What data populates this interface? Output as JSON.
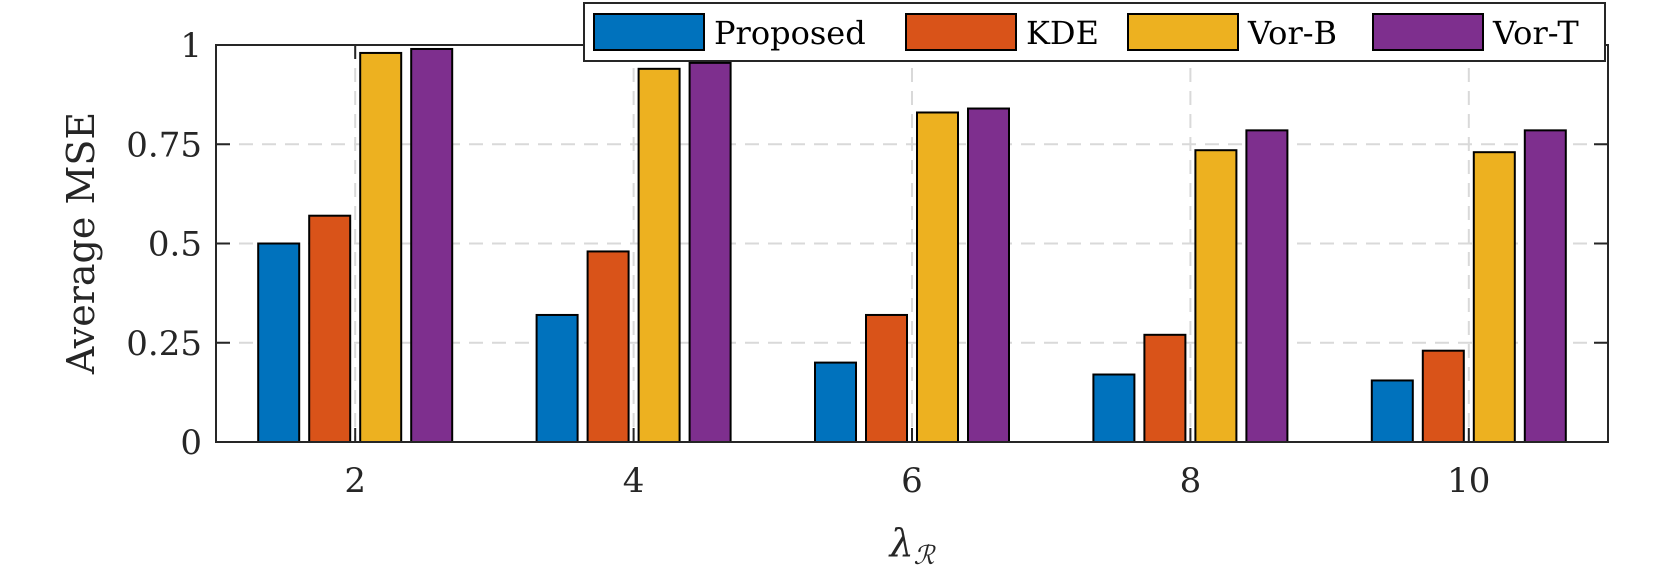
{
  "chart_data": {
    "type": "bar",
    "title": "",
    "xlabel": "λ",
    "xlabel_subscript": "ℛ",
    "ylabel": "Average MSE",
    "categories": [
      "2",
      "4",
      "6",
      "8",
      "10"
    ],
    "yticks": [
      "0",
      "0.25",
      "0.5",
      "0.75",
      "1"
    ],
    "ylim": [
      0,
      1
    ],
    "grid": true,
    "legend_position": "top-right",
    "series": [
      {
        "name": "Proposed",
        "color": "#0072BD",
        "values": [
          0.5,
          0.32,
          0.2,
          0.17,
          0.155
        ]
      },
      {
        "name": "KDE",
        "color": "#D95319",
        "values": [
          0.57,
          0.48,
          0.32,
          0.27,
          0.23
        ]
      },
      {
        "name": "Vor-B",
        "color": "#EDB120",
        "values": [
          0.98,
          0.94,
          0.83,
          0.735,
          0.73
        ]
      },
      {
        "name": "Vor-T",
        "color": "#7E2F8E",
        "values": [
          0.99,
          0.955,
          0.84,
          0.785,
          0.785
        ]
      }
    ]
  }
}
